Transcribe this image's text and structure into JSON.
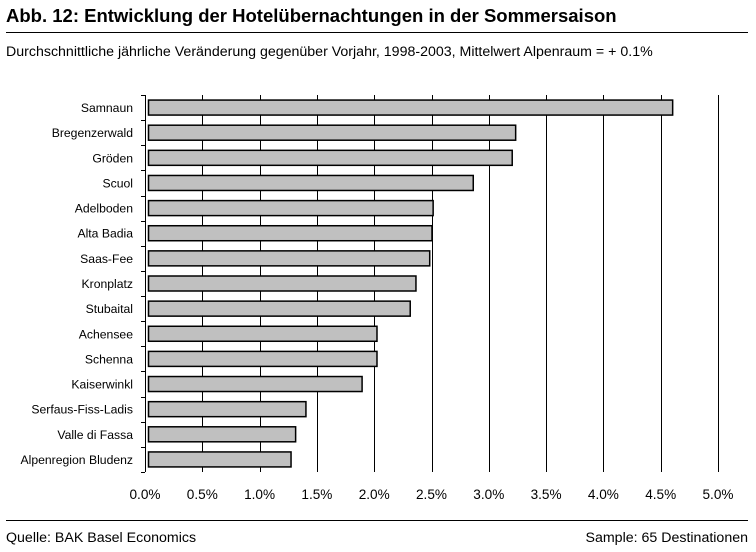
{
  "title": "Abb. 12: Entwicklung der Hotelübernachtungen in der Sommersaison",
  "subtitle": "Durchschnittliche jährliche Veränderung gegenüber Vorjahr, 1998-2003, Mittelwert Alpenraum = + 0.1%",
  "footer": {
    "source": "Quelle: BAK Basel Economics",
    "sample": "Sample: 65 Destinationen"
  },
  "colors": {
    "bar_fill": "#c0c0c0",
    "bar_stroke": "#000000",
    "grid": "#000000"
  },
  "chart_data": {
    "type": "bar",
    "orientation": "horizontal",
    "title": "Abb. 12: Entwicklung der Hotelübernachtungen in der Sommersaison",
    "subtitle": "Durchschnittliche jährliche Veränderung gegenüber Vorjahr, 1998-2003, Mittelwert Alpenraum = + 0.1%",
    "categories": [
      "Samnaun",
      "Bregenzerwald",
      "Gröden",
      "Scuol",
      "Adelboden",
      "Alta Badia",
      "Saas-Fee",
      "Kronplatz",
      "Stubaital",
      "Achensee",
      "Schenna",
      "Kaiserwinkl",
      "Serfaus-Fiss-Ladis",
      "Valle di Fassa",
      "Alpenregion Bludenz"
    ],
    "values": [
      4.6,
      3.23,
      3.2,
      2.86,
      2.51,
      2.5,
      2.48,
      2.36,
      2.31,
      2.02,
      2.02,
      1.89,
      1.4,
      1.31,
      1.27
    ],
    "xlim": [
      0,
      5.0
    ],
    "xticks": [
      0,
      0.5,
      1.0,
      1.5,
      2.0,
      2.5,
      3.0,
      3.5,
      4.0,
      4.5,
      5.0
    ],
    "xtick_labels": [
      "0.0%",
      "0.5%",
      "1.0%",
      "1.5%",
      "2.0%",
      "2.5%",
      "3.0%",
      "3.5%",
      "4.0%",
      "4.5%",
      "5.0%"
    ],
    "xlabel": "",
    "ylabel": "",
    "unit": "%",
    "grid": "vertical",
    "legend": "none"
  }
}
